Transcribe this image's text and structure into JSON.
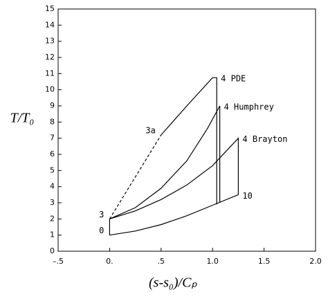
{
  "chart_data": {
    "type": "line",
    "x_label": "(s-s₀)/Cₚ",
    "y_label": "T/T₀",
    "xlim": [
      -0.5,
      2.0
    ],
    "ylim": [
      0,
      15
    ],
    "xticks": [
      {
        "value": -0.5,
        "label": "–.5"
      },
      {
        "value": 0,
        "label": "0."
      },
      {
        "value": 0.5,
        "label": ".5"
      },
      {
        "value": 1.0,
        "label": "1.0"
      },
      {
        "value": 1.5,
        "label": "1.5"
      },
      {
        "value": 2.0,
        "label": "2.0"
      }
    ],
    "yticks": [
      0,
      1,
      2,
      3,
      4,
      5,
      6,
      7,
      8,
      9,
      10,
      11,
      12,
      13,
      14,
      15
    ],
    "grid": false,
    "series": [
      {
        "color": "#000000",
        "dashed": false,
        "x": [
          0,
          0.25,
          0.5,
          0.75,
          1.0,
          1.25
        ],
        "values": [
          1,
          1.25,
          1.65,
          2.2,
          2.85,
          3.5
        ]
      },
      {
        "color": "#000000",
        "dashed": false,
        "x": [
          0,
          0
        ],
        "values": [
          1,
          2
        ]
      },
      {
        "color": "#000000",
        "dashed": false,
        "x": [
          0,
          0.25,
          0.5,
          0.75,
          1.0,
          1.25,
          1.25
        ],
        "values": [
          2,
          2.5,
          3.2,
          4.1,
          5.3,
          7,
          3.5
        ]
      },
      {
        "color": "#000000",
        "dashed": false,
        "x": [
          0,
          0.25,
          0.5,
          0.75,
          0.95,
          1.07,
          1.07
        ],
        "values": [
          2,
          2.7,
          3.9,
          5.6,
          7.6,
          9,
          3.0
        ]
      },
      {
        "color": "#000000",
        "dashed": true,
        "x": [
          0,
          0.5
        ],
        "values": [
          2,
          7.2
        ]
      },
      {
        "color": "#000000",
        "dashed": false,
        "x": [
          0.5,
          0.75,
          1.0,
          1.04,
          1.04
        ],
        "values": [
          7.2,
          9,
          10.75,
          10.75,
          2.9
        ]
      }
    ],
    "annotations": [
      {
        "text": "0",
        "x": 0,
        "y": 1
      },
      {
        "text": "3",
        "x": 0,
        "y": 2
      },
      {
        "text": "3a",
        "x": 0.5,
        "y": 7.2
      },
      {
        "text": "10",
        "x": 1.25,
        "y": 3.5
      },
      {
        "text": "4 PDE",
        "x": 1.04,
        "y": 10.75
      },
      {
        "text": "4 Humphrey",
        "x": 1.07,
        "y": 9
      },
      {
        "text": "4 Brayton",
        "x": 1.25,
        "y": 7
      }
    ]
  }
}
